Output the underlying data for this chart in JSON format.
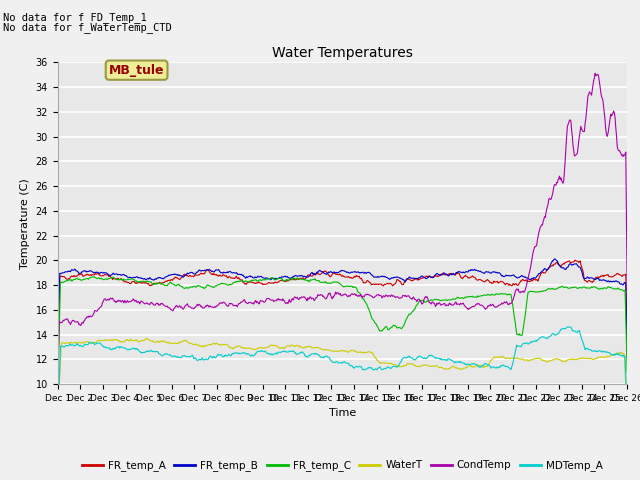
{
  "title": "Water Temperatures",
  "ylabel": "Temperature (C)",
  "xlabel": "Time",
  "text_lines": [
    "No data for f FD_Temp_1",
    "No data for f_WaterTemp_CTD"
  ],
  "annotation": "MB_tule",
  "ylim": [
    10,
    36
  ],
  "yticks": [
    10,
    12,
    14,
    16,
    18,
    20,
    22,
    24,
    26,
    28,
    30,
    32,
    34,
    36
  ],
  "n_points": 800,
  "series": {
    "FR_temp_A": {
      "color": "#cc0000",
      "lw": 0.8
    },
    "FR_temp_B": {
      "color": "#0000cc",
      "lw": 0.8
    },
    "FR_temp_C": {
      "color": "#00bb00",
      "lw": 0.8
    },
    "WaterT": {
      "color": "#cccc00",
      "lw": 0.8
    },
    "CondTemp": {
      "color": "#aa00aa",
      "lw": 0.8
    },
    "MDTemp_A": {
      "color": "#00cccc",
      "lw": 0.8
    }
  },
  "bg_color": "#e8e8e8",
  "grid_color": "#ffffff",
  "legend_box_facecolor": "#eeee99",
  "legend_box_edgecolor": "#999944"
}
